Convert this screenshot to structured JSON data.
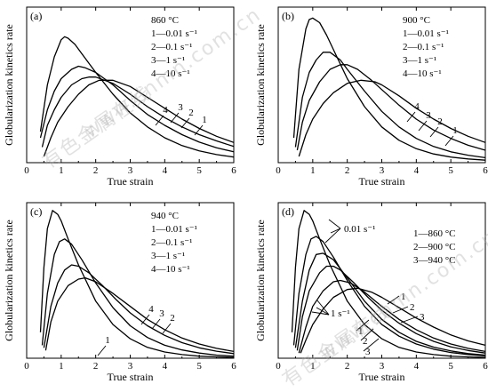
{
  "watermark": {
    "lines": [
      "有色金属在线",
      "www.cnmn.com.cn"
    ]
  },
  "chart_data": [
    {
      "type": "line",
      "panel_label": "(a)",
      "ylabel": "Globularization kinetics rate",
      "xlabel": "True strain",
      "xlim": [
        0,
        6
      ],
      "ylim": [
        0,
        0.5
      ],
      "x_ticks": [
        0,
        1,
        2,
        3,
        4,
        5,
        6
      ],
      "legend_lines": [
        "860 °C",
        "1—0.01 s⁻¹",
        "2—0.1 s⁻¹",
        "3—1 s⁻¹",
        "4—10 s⁻¹"
      ],
      "series": [
        {
          "name": "4",
          "x": [
            0.4,
            0.6,
            0.8,
            1.0,
            1.1,
            1.2,
            1.4,
            1.6,
            2.0,
            2.5,
            3.0,
            3.5,
            4.0,
            4.5,
            5.0,
            5.5,
            6.0
          ],
          "y": [
            0.1,
            0.25,
            0.34,
            0.395,
            0.405,
            0.4,
            0.38,
            0.35,
            0.29,
            0.22,
            0.16,
            0.115,
            0.08,
            0.055,
            0.038,
            0.026,
            0.018
          ]
        },
        {
          "name": "3",
          "x": [
            0.4,
            0.6,
            0.8,
            1.0,
            1.3,
            1.5,
            1.7,
            2.0,
            2.5,
            3.0,
            3.5,
            4.0,
            4.5,
            5.0,
            5.5,
            6.0
          ],
          "y": [
            0.08,
            0.17,
            0.23,
            0.27,
            0.3,
            0.31,
            0.305,
            0.29,
            0.25,
            0.2,
            0.155,
            0.12,
            0.09,
            0.066,
            0.048,
            0.035
          ]
        },
        {
          "name": "2",
          "x": [
            0.45,
            0.6,
            0.8,
            1.0,
            1.3,
            1.6,
            1.8,
            2.0,
            2.5,
            3.0,
            3.5,
            4.0,
            4.5,
            5.0,
            5.5,
            6.0
          ],
          "y": [
            0.05,
            0.12,
            0.17,
            0.21,
            0.25,
            0.27,
            0.275,
            0.275,
            0.255,
            0.22,
            0.18,
            0.145,
            0.115,
            0.09,
            0.07,
            0.052
          ]
        },
        {
          "name": "1",
          "x": [
            0.5,
            0.7,
            0.9,
            1.2,
            1.5,
            1.8,
            2.1,
            2.5,
            3.0,
            3.5,
            4.0,
            4.5,
            5.0,
            5.5,
            6.0
          ],
          "y": [
            0.02,
            0.08,
            0.13,
            0.18,
            0.22,
            0.25,
            0.265,
            0.265,
            0.245,
            0.21,
            0.175,
            0.14,
            0.11,
            0.085,
            0.065
          ]
        }
      ]
    },
    {
      "type": "line",
      "panel_label": "(b)",
      "ylabel": "Globularization kinetics rate",
      "xlabel": "True strain",
      "xlim": [
        0,
        6
      ],
      "ylim": [
        0,
        0.5
      ],
      "x_ticks": [
        0,
        1,
        2,
        3,
        4,
        5,
        6
      ],
      "legend_lines": [
        "900 °C",
        "1—0.01 s⁻¹",
        "2—0.1 s⁻¹",
        "3—1 s⁻¹",
        "4—10 s⁻¹"
      ],
      "series": [
        {
          "name": "4",
          "x": [
            0.45,
            0.6,
            0.8,
            0.9,
            1.0,
            1.2,
            1.4,
            1.7,
            2.0,
            2.5,
            3.0,
            3.5,
            4.0,
            4.5,
            5.0,
            5.5,
            6.0
          ],
          "y": [
            0.08,
            0.3,
            0.43,
            0.46,
            0.465,
            0.45,
            0.41,
            0.34,
            0.27,
            0.18,
            0.115,
            0.072,
            0.045,
            0.028,
            0.018,
            0.012,
            0.008
          ]
        },
        {
          "name": "3",
          "x": [
            0.5,
            0.7,
            0.9,
            1.1,
            1.3,
            1.5,
            1.8,
            2.0,
            2.5,
            3.0,
            3.5,
            4.0,
            4.5,
            5.0,
            5.5,
            6.0
          ],
          "y": [
            0.05,
            0.21,
            0.29,
            0.33,
            0.355,
            0.355,
            0.33,
            0.3,
            0.23,
            0.165,
            0.115,
            0.078,
            0.052,
            0.035,
            0.024,
            0.016
          ]
        },
        {
          "name": "2",
          "x": [
            0.55,
            0.7,
            0.9,
            1.2,
            1.5,
            1.8,
            2.0,
            2.3,
            2.7,
            3.0,
            3.5,
            4.0,
            4.5,
            5.0,
            5.5,
            6.0
          ],
          "y": [
            0.04,
            0.13,
            0.2,
            0.26,
            0.3,
            0.315,
            0.315,
            0.3,
            0.265,
            0.235,
            0.185,
            0.14,
            0.105,
            0.078,
            0.056,
            0.04
          ]
        },
        {
          "name": "1",
          "x": [
            0.6,
            0.8,
            1.0,
            1.3,
            1.6,
            2.0,
            2.4,
            2.8,
            3.0,
            3.5,
            4.0,
            4.5,
            5.0,
            5.5,
            6.0
          ],
          "y": [
            0.02,
            0.09,
            0.14,
            0.19,
            0.225,
            0.255,
            0.265,
            0.26,
            0.25,
            0.215,
            0.175,
            0.14,
            0.11,
            0.085,
            0.065
          ]
        }
      ]
    },
    {
      "type": "line",
      "panel_label": "(c)",
      "ylabel": "Globularization kinetics rate",
      "xlabel": "True strain",
      "xlim": [
        0,
        6
      ],
      "ylim": [
        0,
        0.6
      ],
      "x_ticks": [
        0,
        1,
        2,
        3,
        4,
        5,
        6
      ],
      "legend_lines": [
        "940 °C",
        "1—0.01 s⁻¹",
        "2—0.1 s⁻¹",
        "3—1 s⁻¹",
        "4—10 s⁻¹"
      ],
      "series": [
        {
          "name": "4",
          "x": [
            0.4,
            0.5,
            0.6,
            0.75,
            0.9,
            1.0,
            1.2,
            1.5,
            2.0,
            2.5,
            3.0,
            3.5,
            4.0,
            4.5,
            5.0,
            5.5,
            6.0
          ],
          "y": [
            0.1,
            0.35,
            0.5,
            0.57,
            0.555,
            0.53,
            0.46,
            0.36,
            0.22,
            0.13,
            0.075,
            0.042,
            0.024,
            0.014,
            0.008,
            0.005,
            0.003
          ]
        },
        {
          "name": "3",
          "x": [
            0.45,
            0.6,
            0.8,
            0.95,
            1.1,
            1.3,
            1.6,
            2.0,
            2.5,
            3.0,
            3.5,
            4.0,
            4.5,
            5.0,
            5.5,
            6.0
          ],
          "y": [
            0.05,
            0.25,
            0.4,
            0.45,
            0.46,
            0.44,
            0.38,
            0.29,
            0.195,
            0.125,
            0.08,
            0.05,
            0.032,
            0.02,
            0.012,
            0.008
          ]
        },
        {
          "name": "2",
          "x": [
            0.5,
            0.7,
            0.9,
            1.1,
            1.3,
            1.5,
            1.8,
            2.2,
            2.6,
            3.0,
            3.5,
            4.0,
            4.5,
            5.0,
            5.5,
            6.0
          ],
          "y": [
            0.04,
            0.2,
            0.29,
            0.34,
            0.36,
            0.355,
            0.33,
            0.28,
            0.225,
            0.175,
            0.125,
            0.088,
            0.06,
            0.04,
            0.027,
            0.018
          ]
        },
        {
          "name": "1",
          "x": [
            0.55,
            0.7,
            0.9,
            1.2,
            1.5,
            1.7,
            2.0,
            2.5,
            3.0,
            3.5,
            4.0,
            4.5,
            5.0,
            5.5,
            6.0
          ],
          "y": [
            0.03,
            0.14,
            0.22,
            0.28,
            0.305,
            0.31,
            0.295,
            0.25,
            0.2,
            0.15,
            0.11,
            0.078,
            0.055,
            0.038,
            0.026
          ]
        }
      ]
    },
    {
      "type": "line",
      "panel_label": "(d)",
      "ylabel": "Globularization kinetics rate",
      "xlabel": "True strain",
      "xlim": [
        0,
        6
      ],
      "ylim": [
        0,
        0.6
      ],
      "x_ticks": [
        0,
        1,
        2,
        3,
        4,
        5,
        6
      ],
      "legend_lines": [
        "1—860 °C",
        "2—900 °C",
        "3—940 °C"
      ],
      "annotations": [
        "0.01 s⁻¹",
        "1 s⁻¹",
        "1",
        "2",
        "3",
        "1",
        "2",
        "3"
      ],
      "series": [
        {
          "name": "0.01 s⁻¹, 1",
          "x": [
            0.4,
            0.5,
            0.6,
            0.75,
            0.9,
            1.0,
            1.2,
            1.5,
            2.0,
            2.5,
            3.0,
            3.5,
            4.0,
            4.5,
            5.0,
            5.5,
            6.0
          ],
          "y": [
            0.1,
            0.35,
            0.5,
            0.57,
            0.555,
            0.53,
            0.46,
            0.36,
            0.22,
            0.13,
            0.075,
            0.042,
            0.024,
            0.014,
            0.008,
            0.005,
            0.003
          ]
        },
        {
          "name": "0.01 s⁻¹, 2",
          "x": [
            0.45,
            0.6,
            0.8,
            0.95,
            1.1,
            1.3,
            1.6,
            2.0,
            2.5,
            3.0,
            3.5,
            4.0,
            4.5,
            5.0,
            5.5,
            6.0
          ],
          "y": [
            0.05,
            0.25,
            0.4,
            0.46,
            0.47,
            0.45,
            0.39,
            0.3,
            0.2,
            0.13,
            0.085,
            0.055,
            0.035,
            0.022,
            0.014,
            0.009
          ]
        },
        {
          "name": "0.01 s⁻¹, 3",
          "x": [
            0.5,
            0.7,
            0.9,
            1.1,
            1.3,
            1.6,
            2.0,
            2.5,
            3.0,
            3.5,
            4.0,
            4.5,
            5.0,
            5.5,
            6.0
          ],
          "y": [
            0.04,
            0.22,
            0.34,
            0.4,
            0.405,
            0.38,
            0.31,
            0.22,
            0.15,
            0.1,
            0.065,
            0.043,
            0.028,
            0.018,
            0.012
          ]
        },
        {
          "name": "1 s⁻¹, 1",
          "x": [
            0.55,
            0.7,
            0.9,
            1.2,
            1.4,
            1.6,
            1.8,
            2.2,
            2.6,
            3.0,
            3.5,
            4.0,
            4.5,
            5.0,
            5.5,
            6.0
          ],
          "y": [
            0.03,
            0.16,
            0.26,
            0.33,
            0.355,
            0.355,
            0.34,
            0.29,
            0.235,
            0.185,
            0.135,
            0.095,
            0.065,
            0.044,
            0.03,
            0.02
          ]
        },
        {
          "name": "1 s⁻¹, 2",
          "x": [
            0.6,
            0.8,
            1.0,
            1.3,
            1.6,
            1.8,
            2.1,
            2.5,
            3.0,
            3.5,
            4.0,
            4.5,
            5.0,
            5.5,
            6.0
          ],
          "y": [
            0.02,
            0.12,
            0.2,
            0.26,
            0.295,
            0.3,
            0.29,
            0.255,
            0.2,
            0.15,
            0.11,
            0.078,
            0.055,
            0.038,
            0.026
          ]
        },
        {
          "name": "1 s⁻¹, 3",
          "x": [
            0.65,
            0.8,
            1.0,
            1.3,
            1.6,
            2.0,
            2.3,
            2.7,
            3.0,
            3.5,
            4.0,
            4.5,
            5.0,
            5.5,
            6.0
          ],
          "y": [
            0.02,
            0.07,
            0.13,
            0.19,
            0.235,
            0.265,
            0.27,
            0.255,
            0.235,
            0.195,
            0.155,
            0.12,
            0.09,
            0.067,
            0.05
          ]
        }
      ]
    }
  ]
}
